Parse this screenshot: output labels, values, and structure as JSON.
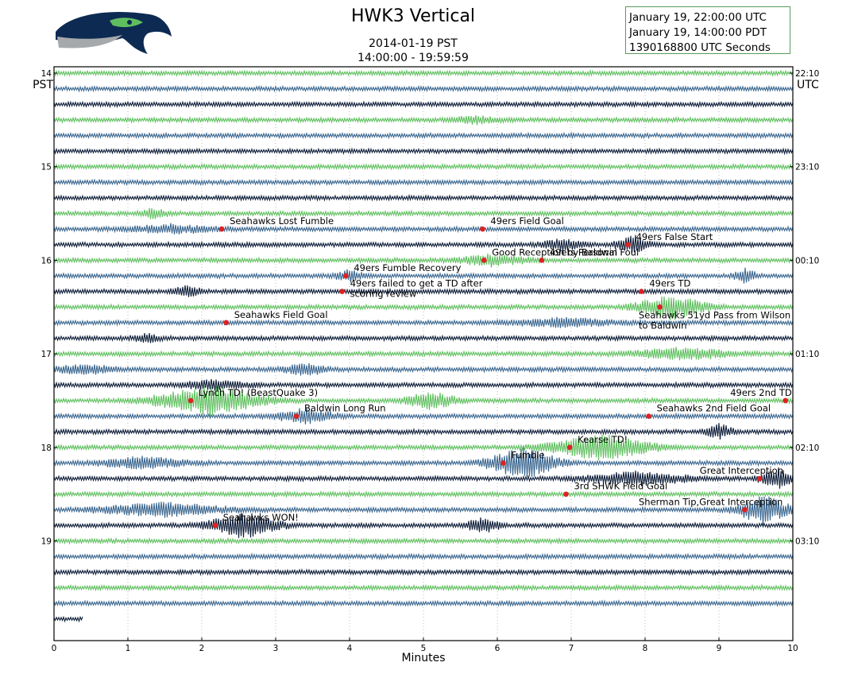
{
  "title": "HWK3 Vertical",
  "subtitle_date": "2014-01-19 PST",
  "subtitle_time": "14:00:00 - 19:59:59",
  "info": [
    "January 19, 22:00:00 UTC",
    "January 19, 14:00:00 PDT",
    "1390168800 UTC Seconds"
  ],
  "logo_icon": "seahawks-logo-icon",
  "colors": {
    "green": "#5fbf5f",
    "blue": "#3b6790",
    "navy": "#0f1f3a",
    "event": "#dd2222"
  },
  "chart_data": {
    "type": "line",
    "xlabel": "Minutes",
    "xlim": [
      0,
      10
    ],
    "x_ticks": [
      "0",
      "1",
      "2",
      "3",
      "4",
      "5",
      "6",
      "7",
      "8",
      "9",
      "10"
    ],
    "left_axis_label": "PST",
    "right_axis_label": "UTC",
    "left_ticks": [
      {
        "label": "14",
        "trace": 0
      },
      {
        "label": "15",
        "trace": 6
      },
      {
        "label": "16",
        "trace": 12
      },
      {
        "label": "17",
        "trace": 18
      },
      {
        "label": "18",
        "trace": 24
      },
      {
        "label": "19",
        "trace": 30
      }
    ],
    "right_ticks": [
      {
        "label": "22:10",
        "trace": 0
      },
      {
        "label": "23:10",
        "trace": 6
      },
      {
        "label": "00:10",
        "trace": 12
      },
      {
        "label": "01:10",
        "trace": 18
      },
      {
        "label": "02:10",
        "trace": 24
      },
      {
        "label": "03:10",
        "trace": 30
      }
    ],
    "trace_count": 36,
    "trace_minutes": 10,
    "last_trace_minutes": 0.4,
    "events": [
      {
        "label": "Seahawks Lost Fumble",
        "trace": 10,
        "minute": 2.27
      },
      {
        "label": "49ers Field Goal",
        "trace": 10,
        "minute": 5.8
      },
      {
        "label": "49ers False Start",
        "trace": 11,
        "minute": 7.77
      },
      {
        "label": "Good Reception by Baldwin",
        "trace": 12,
        "minute": 5.82
      },
      {
        "label": "49ers Personal Foul",
        "trace": 12,
        "minute": 6.6
      },
      {
        "label": "49ers Fumble Recovery",
        "trace": 13,
        "minute": 3.95
      },
      {
        "label": "49ers failed to get a TD after scoring review",
        "trace": 14,
        "minute": 3.9
      },
      {
        "label": "49ers TD",
        "trace": 14,
        "minute": 7.95
      },
      {
        "label": "Seahawks 51yd Pass from Wilson to Baldwin",
        "trace": 15,
        "minute": 8.2
      },
      {
        "label": "Seahawks Field Goal",
        "trace": 16,
        "minute": 2.33
      },
      {
        "label": "Lynch TD! (BeastQuake 3)",
        "trace": 21,
        "minute": 1.85
      },
      {
        "label": "49ers 2nd TD",
        "trace": 21,
        "minute": 9.9
      },
      {
        "label": "Baldwin Long Run",
        "trace": 22,
        "minute": 3.28
      },
      {
        "label": "Seahawks 2nd Field Goal",
        "trace": 22,
        "minute": 8.05
      },
      {
        "label": "Kearse TD!",
        "trace": 24,
        "minute": 6.98
      },
      {
        "label": "Fumble",
        "trace": 25,
        "minute": 6.08
      },
      {
        "label": "Great Interception",
        "trace": 26,
        "minute": 9.55
      },
      {
        "label": "3rd SHWK Field Goal",
        "trace": 27,
        "minute": 6.93
      },
      {
        "label": "Sherman Tip,Great Interception",
        "trace": 28,
        "minute": 9.35
      },
      {
        "label": "Seahawks WON!",
        "trace": 29,
        "minute": 2.18
      }
    ],
    "bursts": [
      {
        "trace": 3,
        "minute": 5.7,
        "amp": 4,
        "width": 0.6
      },
      {
        "trace": 9,
        "minute": 1.35,
        "amp": 6,
        "width": 0.3
      },
      {
        "trace": 10,
        "minute": 1.6,
        "amp": 5,
        "width": 1.0
      },
      {
        "trace": 11,
        "minute": 6.9,
        "amp": 7,
        "width": 0.5
      },
      {
        "trace": 11,
        "minute": 7.85,
        "amp": 11,
        "width": 0.4
      },
      {
        "trace": 12,
        "minute": 5.95,
        "amp": 7,
        "width": 0.8
      },
      {
        "trace": 13,
        "minute": 4.0,
        "amp": 7,
        "width": 0.3
      },
      {
        "trace": 13,
        "minute": 9.35,
        "amp": 9,
        "width": 0.25
      },
      {
        "trace": 14,
        "minute": 1.8,
        "amp": 8,
        "width": 0.3
      },
      {
        "trace": 15,
        "minute": 8.35,
        "amp": 15,
        "width": 0.8
      },
      {
        "trace": 16,
        "minute": 6.9,
        "amp": 5,
        "width": 1.2
      },
      {
        "trace": 17,
        "minute": 1.25,
        "amp": 5,
        "width": 0.3
      },
      {
        "trace": 18,
        "minute": 8.5,
        "amp": 7,
        "width": 1.2
      },
      {
        "trace": 19,
        "minute": 3.4,
        "amp": 7,
        "width": 0.5
      },
      {
        "trace": 19,
        "minute": 0.4,
        "amp": 6,
        "width": 0.8
      },
      {
        "trace": 20,
        "minute": 2.2,
        "amp": 6,
        "width": 0.8
      },
      {
        "trace": 21,
        "minute": 2.1,
        "amp": 18,
        "width": 1.3
      },
      {
        "trace": 21,
        "minute": 5.1,
        "amp": 11,
        "width": 0.6
      },
      {
        "trace": 22,
        "minute": 3.4,
        "amp": 9,
        "width": 0.7
      },
      {
        "trace": 23,
        "minute": 9.0,
        "amp": 9,
        "width": 0.3
      },
      {
        "trace": 24,
        "minute": 7.4,
        "amp": 16,
        "width": 1.2
      },
      {
        "trace": 25,
        "minute": 6.35,
        "amp": 20,
        "width": 0.8
      },
      {
        "trace": 25,
        "minute": 1.2,
        "amp": 7,
        "width": 1.0
      },
      {
        "trace": 26,
        "minute": 7.9,
        "amp": 8,
        "width": 1.2
      },
      {
        "trace": 26,
        "minute": 9.8,
        "amp": 12,
        "width": 0.4
      },
      {
        "trace": 28,
        "minute": 9.6,
        "amp": 18,
        "width": 0.6
      },
      {
        "trace": 28,
        "minute": 1.5,
        "amp": 8,
        "width": 1.5
      },
      {
        "trace": 29,
        "minute": 2.55,
        "amp": 16,
        "width": 0.8
      },
      {
        "trace": 29,
        "minute": 5.8,
        "amp": 9,
        "width": 0.4
      }
    ]
  }
}
